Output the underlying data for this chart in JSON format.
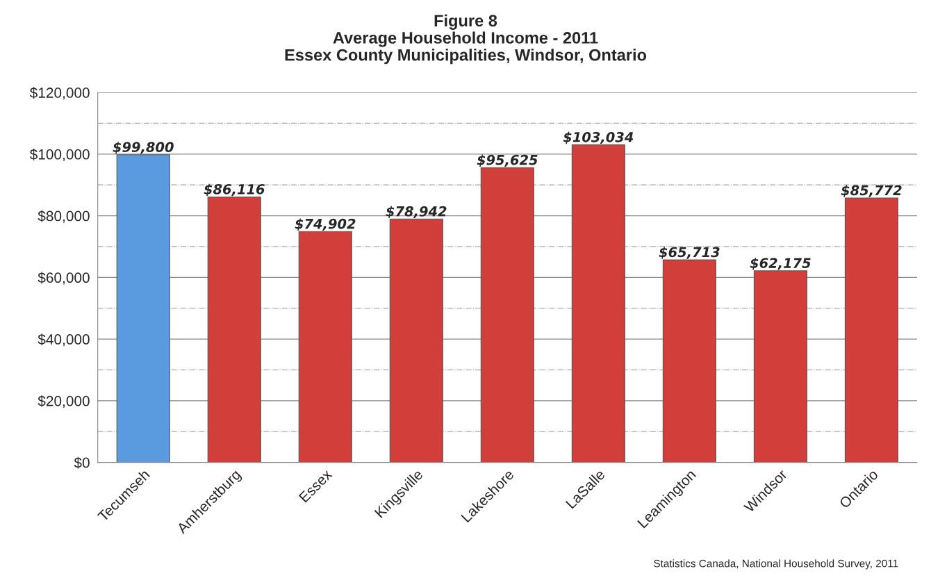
{
  "chart_data": {
    "type": "bar",
    "title": "Figure 8\nAverage Household Income - 2011\nEssex County Municipalities, Windsor, Ontario",
    "categories": [
      "Tecumseh",
      "Amherstburg",
      "Essex",
      "Kingsville",
      "Lakeshore",
      "LaSalle",
      "Leamington",
      "Windsor",
      "Ontario"
    ],
    "values": [
      99800,
      86116,
      74902,
      78942,
      95625,
      103034,
      65713,
      62175,
      85772
    ],
    "colors": [
      "#5a9be0",
      "#d23f3a",
      "#d23f3a",
      "#d23f3a",
      "#d23f3a",
      "#d23f3a",
      "#d23f3a",
      "#d23f3a",
      "#d23f3a"
    ],
    "value_labels": [
      "$99,800",
      "$86,116",
      "$74,902",
      "$78,942",
      "$95,625",
      "$103,034",
      "$65,713",
      "$62,175",
      "$85,772"
    ],
    "ylim": [
      0,
      120000
    ],
    "yticks": [
      {
        "value": 0,
        "label": "$0"
      },
      {
        "value": 10000,
        "label": null
      },
      {
        "value": 20000,
        "label": "$20,000"
      },
      {
        "value": 30000,
        "label": null
      },
      {
        "value": 40000,
        "label": "$40,000"
      },
      {
        "value": 50000,
        "label": null
      },
      {
        "value": 60000,
        "label": "$60,000"
      },
      {
        "value": 70000,
        "label": null
      },
      {
        "value": 80000,
        "label": "$80,000"
      },
      {
        "value": 90000,
        "label": null
      },
      {
        "value": 100000,
        "label": "$100,000"
      },
      {
        "value": 110000,
        "label": null
      },
      {
        "value": 120000,
        "label": "$120,000"
      }
    ],
    "grid": "y",
    "legend": false,
    "annotations": [
      "Statistics Canada, National Household Survey, 2011"
    ]
  }
}
